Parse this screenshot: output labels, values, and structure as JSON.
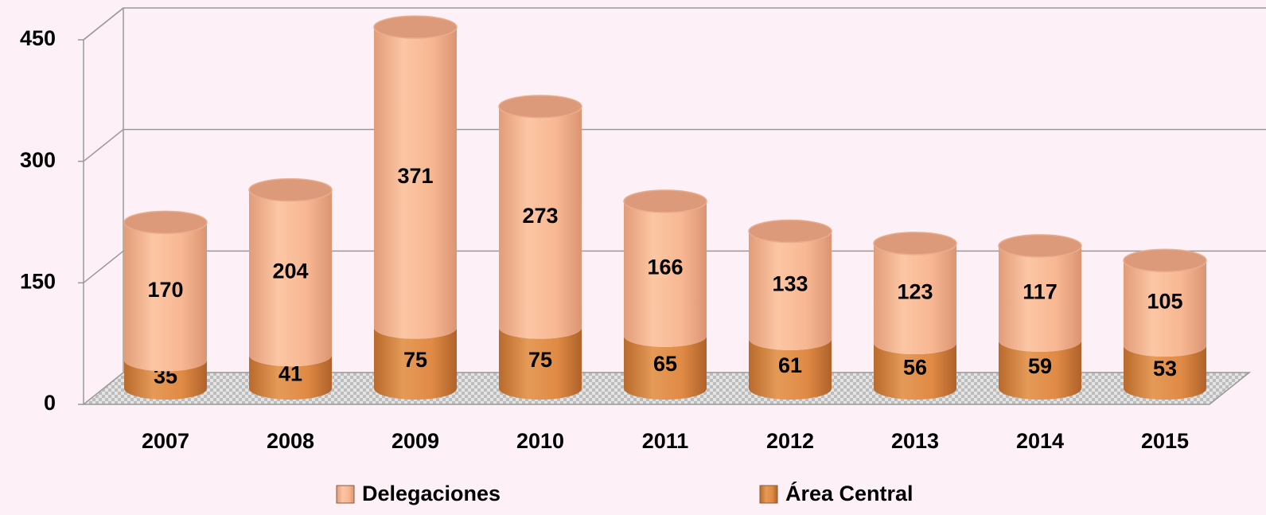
{
  "chart_data": {
    "type": "bar",
    "stacked": true,
    "three_d": true,
    "categories": [
      "2007",
      "2008",
      "2009",
      "2010",
      "2011",
      "2012",
      "2013",
      "2014",
      "2015"
    ],
    "series": [
      {
        "name": "Área Central",
        "color": "#e08a45",
        "values": [
          35,
          41,
          75,
          75,
          65,
          61,
          56,
          59,
          53
        ]
      },
      {
        "name": "Delegaciones",
        "color": "#f7b792",
        "values": [
          170,
          204,
          371,
          273,
          166,
          133,
          123,
          117,
          105
        ]
      }
    ],
    "legend_order": [
      1,
      0
    ],
    "ylim": [
      0,
      450
    ],
    "yticks": [
      0,
      150,
      300,
      450
    ],
    "grid": true
  }
}
